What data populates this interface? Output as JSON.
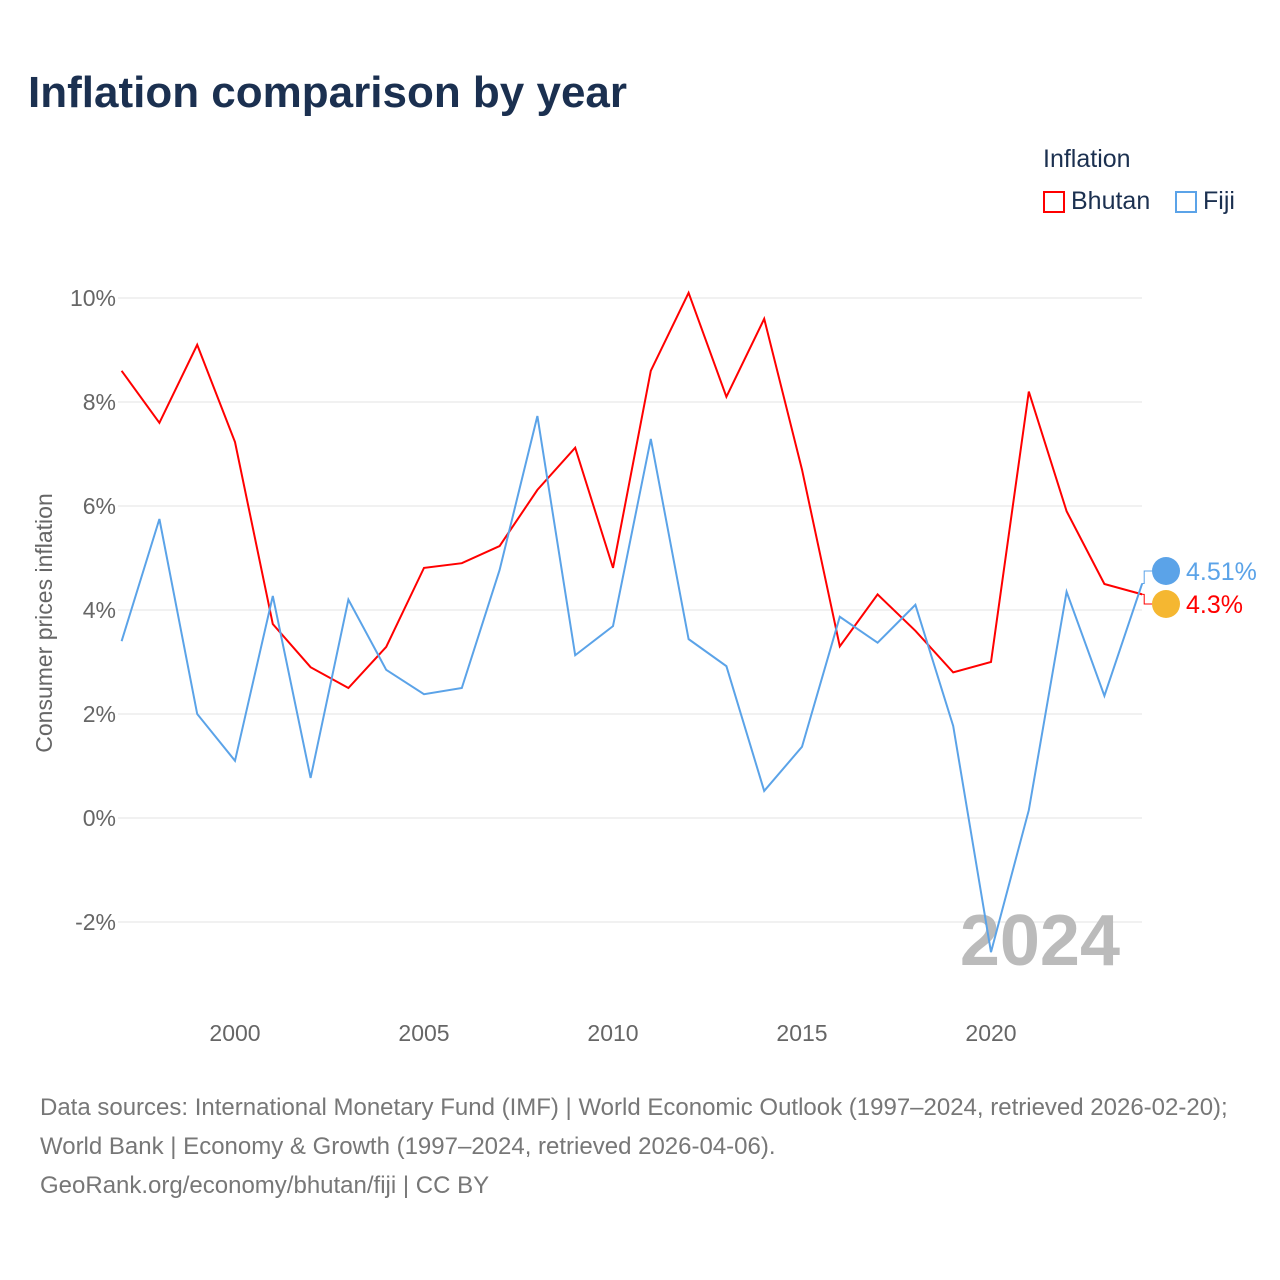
{
  "title": "Inflation comparison by year",
  "legend": {
    "title": "Inflation",
    "items": [
      {
        "name": "Bhutan",
        "color": "#ff0000"
      },
      {
        "name": "Fiji",
        "color": "#5ba3e8"
      }
    ]
  },
  "source": {
    "line1": "Data sources: International Monetary Fund (IMF) | World Economic Outlook (1997–2024, retrieved 2026-02-20); World Bank | Economy & Growth (1997–2024, retrieved 2026-04-06).",
    "line2": "GeoRank.org/economy/bhutan/fiji | CC BY"
  },
  "chart_data": {
    "type": "line",
    "title": "Inflation comparison by year",
    "ylabel": "Consumer prices inflation",
    "xlabel": "",
    "year_watermark": "2024",
    "xlim": [
      1997,
      2024
    ],
    "ylim": [
      -3.5,
      10.5
    ],
    "yticks": [
      -2,
      0,
      2,
      4,
      6,
      8,
      10
    ],
    "ytick_labels": [
      "-2%",
      "0%",
      "2%",
      "4%",
      "6%",
      "8%",
      "10%"
    ],
    "xticks": [
      2000,
      2005,
      2010,
      2015,
      2020
    ],
    "x": [
      1997,
      1998,
      1999,
      2000,
      2001,
      2002,
      2003,
      2004,
      2005,
      2006,
      2007,
      2008,
      2009,
      2010,
      2011,
      2012,
      2013,
      2014,
      2015,
      2016,
      2017,
      2018,
      2019,
      2020,
      2021,
      2022,
      2023,
      2024
    ],
    "series": [
      {
        "name": "Bhutan",
        "color": "#ff0000",
        "end_label": "4.3%",
        "values": [
          8.6,
          7.6,
          9.1,
          7.23,
          3.73,
          2.9,
          2.5,
          3.29,
          4.81,
          4.9,
          5.23,
          6.31,
          7.12,
          4.81,
          8.6,
          10.1,
          8.1,
          9.6,
          6.7,
          3.3,
          4.3,
          3.6,
          2.8,
          3.0,
          8.2,
          5.9,
          4.5,
          4.3
        ]
      },
      {
        "name": "Fiji",
        "color": "#5ba3e8",
        "end_label": "4.51%",
        "values": [
          3.4,
          5.75,
          2.0,
          1.1,
          4.27,
          0.77,
          4.2,
          2.85,
          2.38,
          2.5,
          4.77,
          7.73,
          3.13,
          3.69,
          7.29,
          3.44,
          2.92,
          0.52,
          1.37,
          3.87,
          3.37,
          4.1,
          1.77,
          -2.58,
          0.15,
          4.35,
          2.35,
          4.51
        ]
      }
    ]
  }
}
